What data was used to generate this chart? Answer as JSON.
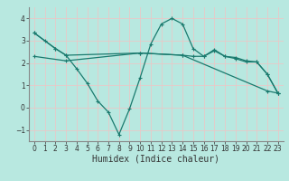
{
  "background_color": "#b8e8e0",
  "grid_color": "#d4f0e8",
  "line_color": "#1a7a6e",
  "xlabel": "Humidex (Indice chaleur)",
  "xlabel_fontsize": 7,
  "ylim": [
    -1.5,
    4.5
  ],
  "xlim": [
    -0.5,
    23.5
  ],
  "yticks": [
    -1,
    0,
    1,
    2,
    3,
    4
  ],
  "xticks": [
    0,
    1,
    2,
    3,
    4,
    5,
    6,
    7,
    8,
    9,
    10,
    11,
    12,
    13,
    14,
    15,
    16,
    17,
    18,
    19,
    20,
    21,
    22,
    23
  ],
  "series": [
    {
      "x": [
        0,
        1,
        2,
        3,
        4,
        5,
        6,
        7,
        8,
        9,
        10,
        11,
        12,
        13,
        14,
        15,
        16,
        17,
        18,
        19,
        20,
        21,
        22,
        23
      ],
      "y": [
        3.35,
        3.0,
        2.65,
        2.35,
        1.75,
        1.1,
        0.3,
        -0.2,
        -1.2,
        -0.05,
        1.35,
        2.85,
        3.75,
        4.0,
        3.75,
        2.65,
        2.3,
        2.6,
        2.3,
        2.2,
        2.05,
        2.05,
        1.5,
        0.65
      ]
    },
    {
      "x": [
        0,
        2,
        3,
        10,
        14,
        15,
        16,
        17,
        18,
        19,
        20,
        21,
        22,
        23
      ],
      "y": [
        3.35,
        2.65,
        2.35,
        2.45,
        2.35,
        2.3,
        2.3,
        2.55,
        2.3,
        2.25,
        2.1,
        2.05,
        1.5,
        0.65
      ]
    },
    {
      "x": [
        0,
        3,
        10,
        14,
        22,
        23
      ],
      "y": [
        2.3,
        2.1,
        2.45,
        2.35,
        0.75,
        0.65
      ]
    }
  ]
}
